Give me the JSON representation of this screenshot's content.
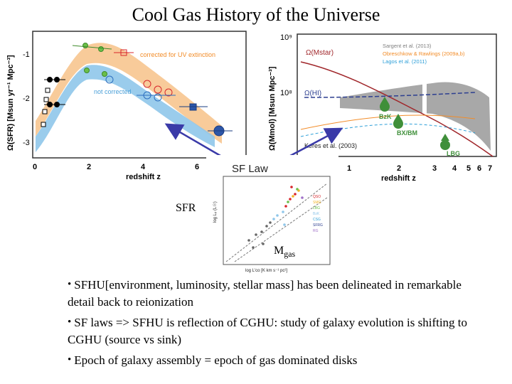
{
  "title": "Cool Gas History of the Universe",
  "sfr_panel": {
    "y_axis_label": "Ω(SFR) [Msun yr⁻¹ Mpc⁻³]",
    "x_axis_label": "redshift z",
    "y_ticks": [
      "-1",
      "-2",
      "-3"
    ],
    "x_ticks": [
      "0",
      "2",
      "4",
      "6"
    ],
    "band_label_corrected": "corrected for UV extinction",
    "band_label_uncorrected": "not corrected",
    "colors": {
      "corrected_band": "#f7c58f",
      "uncorrected_band": "#8fc6ea",
      "corrected_text": "#f28c28",
      "uncorrected_text": "#4a9fd8"
    }
  },
  "gas_panel": {
    "y_axis_label": "Ω(Mmol) [Msun Mpc⁻³]",
    "x_axis_label": "redshift z",
    "y_ticks": [
      "10⁹",
      "10⁸"
    ],
    "x_ticks": [
      "1",
      "2",
      "3",
      "4",
      "5",
      "6",
      "7"
    ],
    "legend": [
      "Sargent et al. (2013)",
      "Obreschkow & Rawlings (2009a,b)",
      "Lagos et al. (2011)"
    ],
    "legend_colors": [
      "#808080",
      "#f28c28",
      "#2d9fd8"
    ],
    "curve_labels": {
      "mstar": "Ω(Mstar)",
      "hi": "Ω(HI)",
      "keres": "Keres et al. (2003)"
    },
    "point_labels": [
      "BzK",
      "BX/BM",
      "LBG"
    ]
  },
  "sf_law_panel": {
    "title": "SF Law",
    "y_axis_label": "log Lᵢᵣ (L☉)",
    "x_axis_label": "log L'co [K km s⁻¹ pc²]",
    "legend": [
      "QSO",
      "SMG",
      "LBG",
      "BzK",
      "CSG",
      "SFRG",
      "RG"
    ]
  },
  "arrow_labels": {
    "sfr": "SFR",
    "mgas_main": "M",
    "mgas_sub": "gas"
  },
  "bullets": [
    "SFHU[environment, luminosity, stellar mass] has been delineated in remarkable detail back to reionization",
    "SF laws => SFHU is reflection of CGHU: study of galaxy evolution is shifting to CGHU (source vs sink)",
    "Epoch of galaxy assembly = epoch of gas dominated disks"
  ]
}
